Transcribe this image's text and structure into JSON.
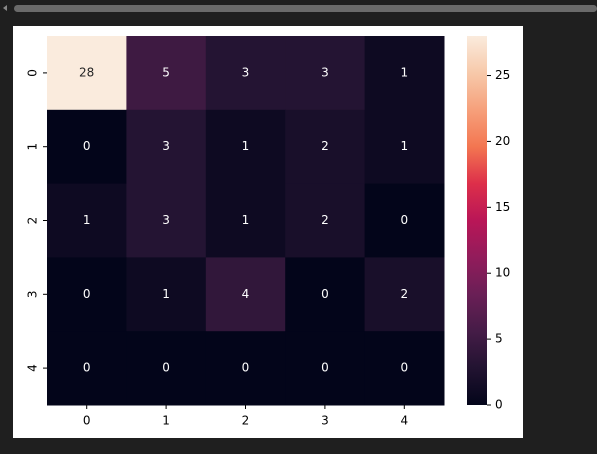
{
  "chart_data": {
    "type": "heatmap",
    "x": [
      "0",
      "1",
      "2",
      "3",
      "4"
    ],
    "y": [
      "0",
      "1",
      "2",
      "3",
      "4"
    ],
    "values": [
      [
        28,
        5,
        3,
        3,
        1
      ],
      [
        0,
        3,
        1,
        2,
        1
      ],
      [
        1,
        3,
        1,
        2,
        0
      ],
      [
        0,
        1,
        4,
        0,
        2
      ],
      [
        0,
        0,
        0,
        0,
        0
      ]
    ],
    "colormap": "rocket",
    "clim": [
      0,
      28
    ],
    "cticks": [
      0,
      5,
      10,
      15,
      20,
      25
    ]
  }
}
